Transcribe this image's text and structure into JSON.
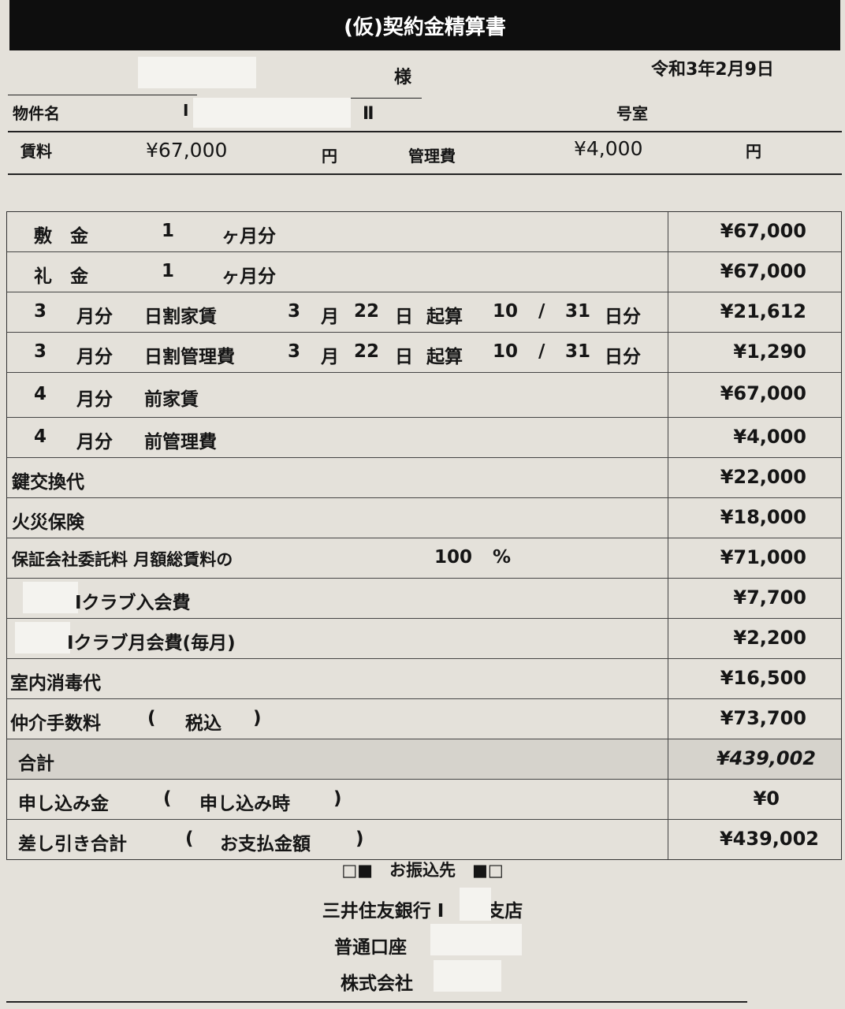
{
  "title": "(仮)契約金精算書",
  "header": {
    "honorific": "様",
    "date": "令和3年2月9日",
    "property_label": "物件名",
    "property_fragment_1": "I",
    "property_fragment_2": "Ⅱ",
    "room_label": "号室",
    "rent_label": "賃料",
    "rent_value": "¥67,000",
    "rent_unit": "円",
    "mgmt_label": "管理費",
    "mgmt_value": "¥4,000",
    "mgmt_unit": "円"
  },
  "rows": [
    {
      "parts": [
        "敷　金",
        "1",
        "ヶ月分"
      ],
      "amount": "¥67,000"
    },
    {
      "parts": [
        "礼　金",
        "1",
        "ヶ月分"
      ],
      "amount": "¥67,000"
    },
    {
      "parts": [
        "3",
        "月分",
        "日割家賃",
        "3",
        "月",
        "22",
        "日",
        "起算",
        "10",
        "/",
        "31",
        "日分"
      ],
      "amount": "¥21,612"
    },
    {
      "parts": [
        "3",
        "月分",
        "日割管理費",
        "3",
        "月",
        "22",
        "日",
        "起算",
        "10",
        "/",
        "31",
        "日分"
      ],
      "amount": "¥1,290"
    },
    {
      "parts": [
        "4",
        "月分",
        "前家賃"
      ],
      "amount": "¥67,000"
    },
    {
      "parts": [
        "4",
        "月分",
        "前管理費"
      ],
      "amount": "¥4,000"
    },
    {
      "parts": [
        "鍵交換代"
      ],
      "amount": "¥22,000"
    },
    {
      "parts": [
        "火災保険"
      ],
      "amount": "¥18,000"
    },
    {
      "parts": [
        "保証会社委託料 月額総賃料の",
        "100",
        "%"
      ],
      "amount": "¥71,000"
    },
    {
      "parts": [
        "Iクラブ入会費"
      ],
      "amount": "¥7,700"
    },
    {
      "parts": [
        "Iクラブ月会費(毎月)"
      ],
      "amount": "¥2,200"
    },
    {
      "parts": [
        "室内消毒代"
      ],
      "amount": "¥16,500"
    },
    {
      "parts": [
        "仲介手数料",
        "(",
        "税込",
        ")"
      ],
      "amount": "¥73,700"
    },
    {
      "parts": [
        "合計"
      ],
      "amount": "¥439,002"
    },
    {
      "parts": [
        "申し込み金",
        "(",
        "申し込み時",
        ")"
      ],
      "amount": "¥0"
    },
    {
      "parts": [
        "差し引き合計",
        "(",
        "お支払金額",
        ")"
      ],
      "amount": "¥439,002"
    }
  ],
  "footer": {
    "transfer_label": "□■　お振込先　■□",
    "bank": "三井住友銀行 I　 野支店",
    "account": "普通口座",
    "company": "株式会社"
  }
}
